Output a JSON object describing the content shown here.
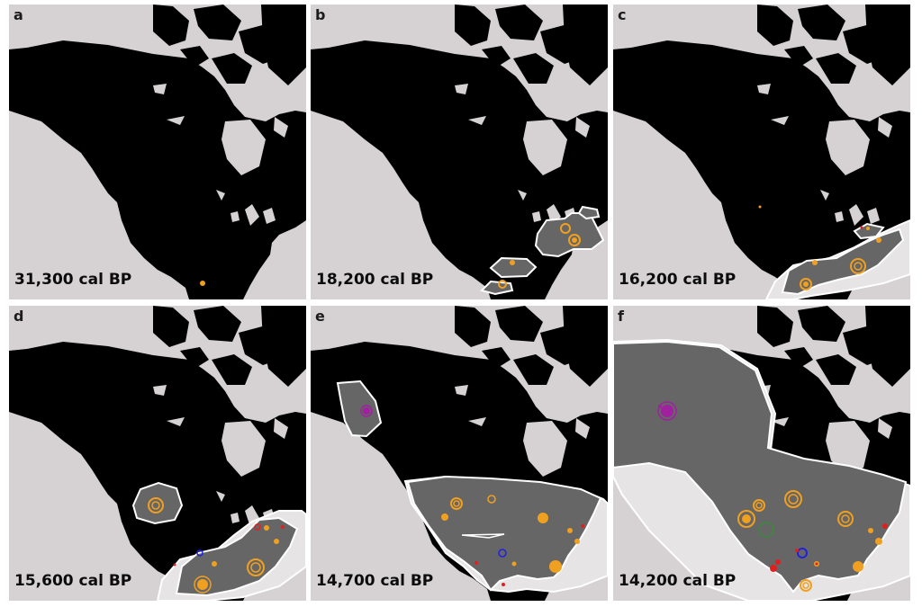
{
  "figure": {
    "panels": [
      {
        "label": "a",
        "date": "31,300 cal BP"
      },
      {
        "label": "b",
        "date": "18,200 cal BP"
      },
      {
        "label": "c",
        "date": "16,200 cal BP"
      },
      {
        "label": "d",
        "date": "15,600 cal BP"
      },
      {
        "label": "e",
        "date": "14,700 cal BP"
      },
      {
        "label": "f",
        "date": "14,200 cal BP"
      }
    ]
  },
  "colors": {
    "ocean": "#d6d2d3",
    "land": "#000000",
    "range_fill": "#666666",
    "range_outline": "#ffffff",
    "outer_zone": "#e6e4e5",
    "site_orange": "#f0a020",
    "site_red": "#e02020",
    "site_blue": "#2020e0",
    "site_purple": "#a020a0",
    "site_green": "#3a8a3a"
  }
}
